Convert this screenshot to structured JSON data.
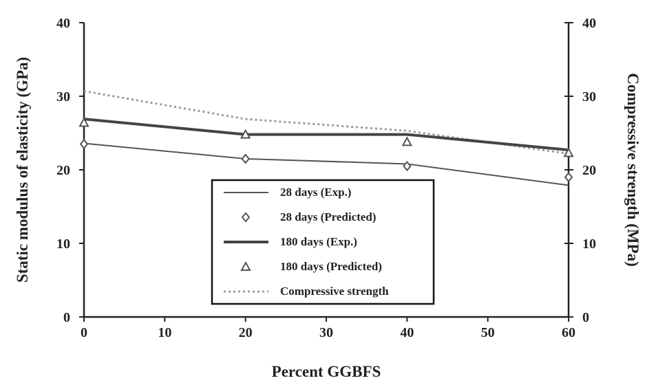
{
  "chart_data": {
    "type": "line",
    "xlabel": "Percent GGBFS",
    "ylabel": "Static modulus of elasticity (GPa)",
    "y2label": "Compressive strength (MPa)",
    "xlim": [
      0,
      60
    ],
    "ylim": [
      0,
      40
    ],
    "y2lim": [
      0,
      40
    ],
    "xticks": [
      "0",
      "10",
      "20",
      "30",
      "40",
      "50",
      "60"
    ],
    "yticks": [
      "0",
      "10",
      "20",
      "30",
      "40"
    ],
    "y2ticks": [
      "0",
      "10",
      "20",
      "30",
      "40"
    ],
    "grid": false,
    "legend_position": "center-bottom",
    "series": [
      {
        "name": "28 days (Exp.)",
        "style": "thin-line",
        "color": "#555555",
        "x": [
          0,
          20,
          40,
          60
        ],
        "values": [
          23.6,
          21.5,
          20.8,
          17.9
        ]
      },
      {
        "name": "28 days (Predicted)",
        "style": "diamond-marker",
        "color": "#555555",
        "x": [
          0,
          20,
          40,
          60
        ],
        "values": [
          23.5,
          21.5,
          20.5,
          19.0
        ]
      },
      {
        "name": "180 days (Exp.)",
        "style": "thick-line",
        "color": "#444444",
        "x": [
          0,
          20,
          40,
          60
        ],
        "values": [
          26.9,
          24.8,
          24.8,
          22.7
        ]
      },
      {
        "name": "180 days (Predicted)",
        "style": "triangle-marker",
        "color": "#555555",
        "x": [
          0,
          20,
          40,
          60
        ],
        "values": [
          26.4,
          24.8,
          23.8,
          22.3
        ]
      },
      {
        "name": "Compressive strength",
        "style": "dotted-line",
        "color": "#999999",
        "x": [
          0,
          20,
          40,
          60
        ],
        "values": [
          30.7,
          26.9,
          25.3,
          22.2
        ]
      }
    ]
  }
}
